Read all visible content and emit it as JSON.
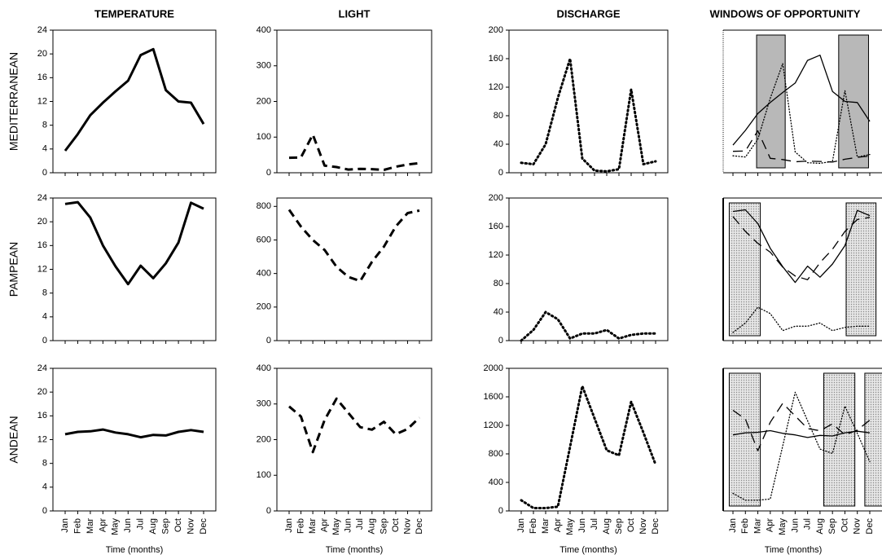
{
  "chart_data": [
    {
      "type": "line",
      "title": "TEMPERATURE",
      "row_label": "MEDITERRANEAN",
      "ylim": [
        0,
        24
      ],
      "yticks": [
        0,
        4,
        8,
        12,
        16,
        20,
        24
      ],
      "series": [
        {
          "color": "#000000",
          "dash": "solid",
          "values": [
            3.7,
            6.5,
            9.7,
            11.8,
            13.7,
            15.5,
            19.8,
            20.8,
            13.9,
            12,
            11.8,
            8.2
          ]
        }
      ]
    },
    {
      "type": "line",
      "title": "LIGHT",
      "ylim": [
        0,
        400
      ],
      "yticks": [
        0,
        100,
        200,
        300,
        400
      ],
      "series": [
        {
          "color": "#000000",
          "dash": "dash",
          "values": [
            42,
            43,
            107,
            20,
            16,
            9,
            11,
            10,
            8,
            17,
            23,
            27
          ]
        }
      ]
    },
    {
      "type": "line",
      "title": "DISCHARGE",
      "ylim": [
        0,
        200
      ],
      "yticks": [
        0,
        40,
        80,
        120,
        160,
        200
      ],
      "series": [
        {
          "color": "#000000",
          "dash": "dot",
          "values": [
            14,
            12,
            40,
            105,
            160,
            20,
            3,
            2,
            5,
            117,
            12,
            16
          ]
        }
      ]
    },
    {
      "type": "windows",
      "title": "WINDOWS OF OPPORTUNITY",
      "fill": "solid",
      "windows": [
        [
          1.9,
          4.2
        ],
        [
          8.5,
          10.9
        ]
      ]
    },
    {
      "type": "line",
      "row_label": "PAMPEAN",
      "ylim": [
        0,
        24
      ],
      "yticks": [
        0,
        4,
        8,
        12,
        16,
        20,
        24
      ],
      "series": [
        {
          "color": "#000000",
          "dash": "solid",
          "values": [
            23,
            23.3,
            20.7,
            16,
            12.5,
            9.5,
            12.6,
            10.5,
            13,
            16.5,
            23.2,
            22.2
          ]
        }
      ]
    },
    {
      "type": "line",
      "ylim": [
        0,
        850
      ],
      "yticks": [
        0,
        200,
        400,
        600,
        800
      ],
      "series": [
        {
          "color": "#000000",
          "dash": "dash",
          "values": [
            780,
            680,
            600,
            540,
            440,
            380,
            355,
            470,
            560,
            680,
            760,
            775
          ]
        }
      ]
    },
    {
      "type": "line",
      "ylim": [
        0,
        200
      ],
      "yticks": [
        0,
        40,
        80,
        120,
        160,
        200
      ],
      "series": [
        {
          "color": "#000000",
          "dash": "dot",
          "values": [
            0,
            15,
            40,
            30,
            3,
            10,
            10,
            15,
            3,
            8,
            10,
            10
          ]
        }
      ]
    },
    {
      "type": "windows",
      "fill": "dotted",
      "windows": [
        [
          -0.3,
          2.2
        ],
        [
          9.1,
          11.5
        ]
      ]
    },
    {
      "type": "line",
      "row_label": "ANDEAN",
      "x_label": "Time (months)",
      "ylim": [
        0,
        24
      ],
      "yticks": [
        0,
        4,
        8,
        12,
        16,
        20,
        24
      ],
      "categories": [
        "Jan",
        "Feb",
        "Mar",
        "Apr",
        "May",
        "Jun",
        "Jul",
        "Aug",
        "Sep",
        "Oct",
        "Nov",
        "Dec"
      ],
      "series": [
        {
          "color": "#000000",
          "dash": "solid",
          "values": [
            12.9,
            13.3,
            13.4,
            13.7,
            13.2,
            12.9,
            12.4,
            12.8,
            12.7,
            13.3,
            13.6,
            13.3
          ]
        }
      ]
    },
    {
      "type": "line",
      "x_label": "Time (months)",
      "ylim": [
        0,
        400
      ],
      "yticks": [
        0,
        100,
        200,
        300,
        400
      ],
      "categories": [
        "Jan",
        "Feb",
        "Mar",
        "Apr",
        "May",
        "Jun",
        "Jul",
        "Aug",
        "Sep",
        "Oct",
        "Nov",
        "Dec"
      ],
      "series": [
        {
          "color": "#000000",
          "dash": "dash",
          "values": [
            293,
            265,
            165,
            255,
            315,
            275,
            235,
            228,
            250,
            215,
            230,
            262
          ]
        }
      ]
    },
    {
      "type": "line",
      "x_label": "Time (months)",
      "ylim": [
        0,
        2000
      ],
      "yticks": [
        0,
        400,
        800,
        1200,
        1600,
        2000
      ],
      "categories": [
        "Jan",
        "Feb",
        "Mar",
        "Apr",
        "May",
        "Jun",
        "Jul",
        "Aug",
        "Sep",
        "Oct",
        "Nov",
        "Dec"
      ],
      "series": [
        {
          "color": "#000000",
          "dash": "dot",
          "values": [
            150,
            40,
            40,
            60,
            900,
            1750,
            1300,
            850,
            780,
            1530,
            1100,
            650
          ]
        }
      ]
    },
    {
      "type": "windows",
      "x_label": "Time (months)",
      "fill": "dotted",
      "windows": [
        [
          -0.3,
          2.2
        ],
        [
          7.3,
          9.8
        ],
        [
          10.6,
          12.5
        ]
      ],
      "categories": [
        "Jan",
        "Feb",
        "Mar",
        "Apr",
        "May",
        "Jun",
        "Jul",
        "Aug",
        "Sep",
        "Oct",
        "Nov",
        "Dec"
      ]
    }
  ]
}
